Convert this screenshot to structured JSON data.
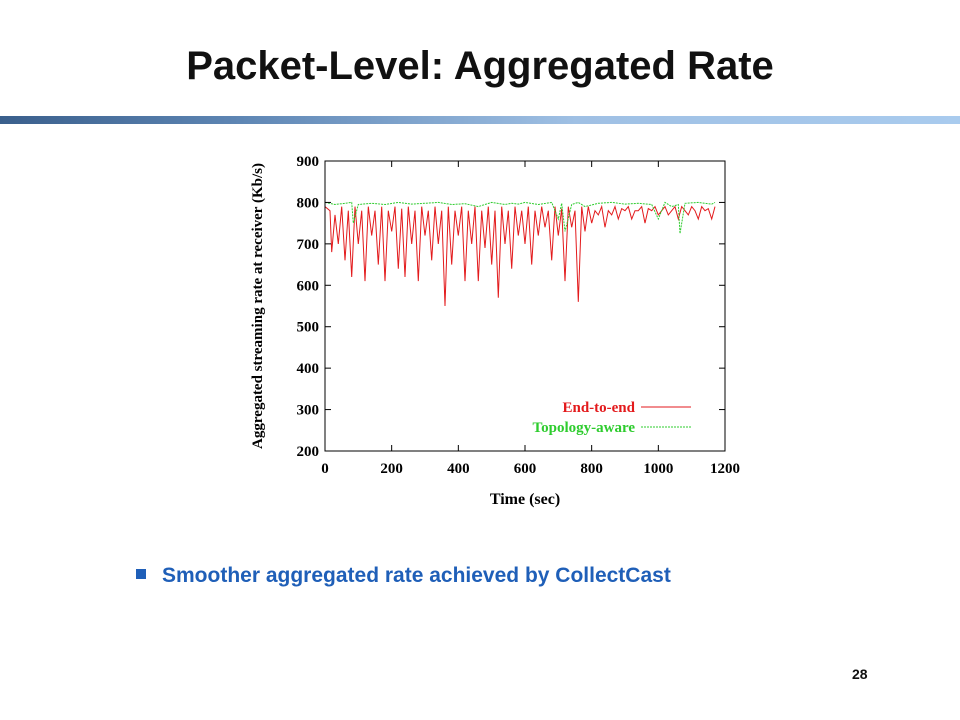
{
  "slide": {
    "title": "Packet-Level: Aggregated Rate",
    "bullet": "Smoother aggregated rate achieved by CollectCast",
    "page_number": "28",
    "accent_color": "#1f5fb8"
  },
  "chart_data": {
    "type": "line",
    "title": "",
    "xlabel": "Time (sec)",
    "ylabel": "Aggregated streaming rate at receiver (Kb/s)",
    "xlim": [
      0,
      1200
    ],
    "ylim": [
      200,
      900
    ],
    "xticks": [
      0,
      200,
      400,
      600,
      800,
      1000,
      1200
    ],
    "yticks": [
      200,
      300,
      400,
      500,
      600,
      700,
      800,
      900
    ],
    "grid": false,
    "legend_position": "bottom-right",
    "series": [
      {
        "name": "End-to-end",
        "color": "#e31a1c",
        "x": [
          0,
          15,
          20,
          30,
          40,
          50,
          60,
          70,
          80,
          90,
          100,
          110,
          120,
          130,
          140,
          150,
          160,
          170,
          180,
          190,
          200,
          210,
          220,
          230,
          240,
          250,
          260,
          270,
          280,
          290,
          300,
          310,
          320,
          330,
          340,
          350,
          360,
          370,
          380,
          390,
          400,
          410,
          420,
          430,
          440,
          450,
          460,
          470,
          480,
          490,
          500,
          510,
          520,
          530,
          540,
          550,
          560,
          570,
          580,
          590,
          600,
          610,
          620,
          630,
          640,
          650,
          660,
          670,
          680,
          690,
          700,
          710,
          720,
          730,
          740,
          750,
          760,
          770,
          780,
          790,
          800,
          810,
          820,
          830,
          840,
          850,
          860,
          870,
          880,
          890,
          900,
          910,
          920,
          930,
          940,
          950,
          960,
          970,
          980,
          990,
          1000,
          1010,
          1020,
          1030,
          1040,
          1050,
          1060,
          1070,
          1080,
          1090,
          1100,
          1110,
          1120,
          1130,
          1140,
          1150,
          1160,
          1170
        ],
        "values": [
          790,
          780,
          680,
          770,
          700,
          790,
          660,
          780,
          620,
          790,
          700,
          780,
          610,
          790,
          720,
          780,
          650,
          790,
          610,
          780,
          730,
          790,
          640,
          785,
          620,
          790,
          700,
          780,
          610,
          790,
          720,
          780,
          660,
          790,
          700,
          780,
          550,
          790,
          650,
          780,
          720,
          790,
          610,
          780,
          700,
          790,
          610,
          780,
          690,
          790,
          650,
          780,
          570,
          790,
          700,
          780,
          640,
          790,
          720,
          780,
          700,
          790,
          650,
          780,
          720,
          790,
          740,
          780,
          660,
          790,
          720,
          785,
          610,
          790,
          740,
          780,
          560,
          790,
          730,
          790,
          750,
          780,
          770,
          790,
          740,
          780,
          770,
          790,
          760,
          785,
          780,
          790,
          760,
          780,
          780,
          790,
          750,
          785,
          780,
          790,
          770,
          780,
          790,
          770,
          780,
          790,
          760,
          790,
          780,
          770,
          790,
          780,
          760,
          790,
          780,
          785,
          760,
          790
        ]
      },
      {
        "name": "Topology-aware",
        "color": "#2ecc2e",
        "x": [
          0,
          30,
          60,
          80,
          85,
          100,
          140,
          180,
          220,
          260,
          300,
          340,
          380,
          420,
          460,
          500,
          540,
          560,
          580,
          600,
          640,
          680,
          700,
          710,
          720,
          740,
          760,
          780,
          820,
          860,
          900,
          940,
          980,
          1000,
          1020,
          1040,
          1060,
          1065,
          1080,
          1120,
          1160,
          1170
        ],
        "values": [
          800,
          795,
          798,
          800,
          750,
          795,
          798,
          795,
          800,
          796,
          798,
          800,
          795,
          797,
          790,
          800,
          795,
          798,
          796,
          800,
          795,
          800,
          760,
          798,
          730,
          795,
          800,
          790,
          798,
          800,
          796,
          798,
          795,
          760,
          800,
          790,
          795,
          725,
          798,
          800,
          796,
          800
        ]
      }
    ]
  }
}
